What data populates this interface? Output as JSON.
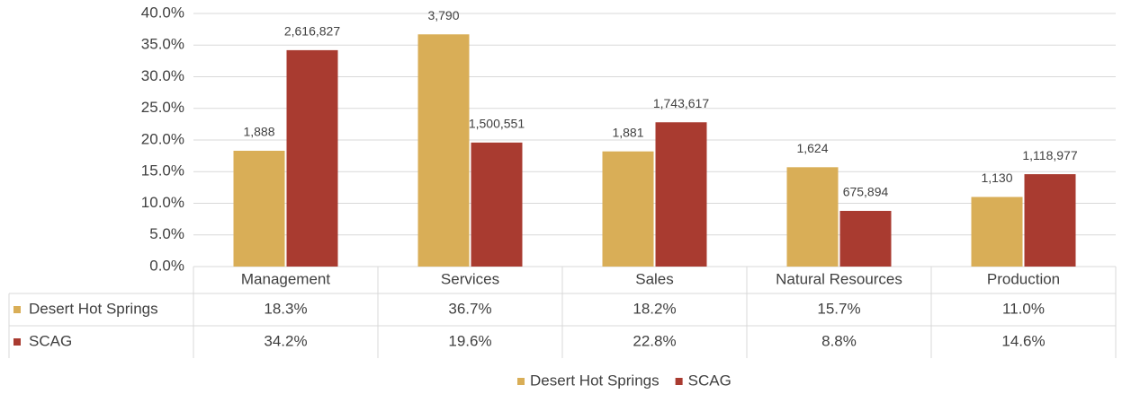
{
  "chart_data": {
    "type": "bar",
    "categories": [
      "Management",
      "Services",
      "Sales",
      "Natural Resources",
      "Production"
    ],
    "series": [
      {
        "name": "Desert Hot Springs",
        "color": "#d9ae57",
        "values": [
          18.3,
          36.7,
          18.2,
          15.7,
          11.0
        ],
        "value_labels": [
          "18.3%",
          "36.7%",
          "18.2%",
          "15.7%",
          "11.0%"
        ],
        "count_labels": [
          "1,888",
          "3,790",
          "1,881",
          "1,624",
          "1,130"
        ]
      },
      {
        "name": "SCAG",
        "color": "#a93b30",
        "values": [
          34.2,
          19.6,
          22.8,
          8.8,
          14.6
        ],
        "value_labels": [
          "34.2%",
          "19.6%",
          "22.8%",
          "8.8%",
          "14.6%"
        ],
        "count_labels": [
          "2,616,827",
          "1,500,551",
          "1,743,617",
          "675,894",
          "1,118,977"
        ]
      }
    ],
    "ylim": [
      0,
      40
    ],
    "yticks": [
      {
        "value": 0,
        "label": "0.0%"
      },
      {
        "value": 5,
        "label": "5.0%"
      },
      {
        "value": 10,
        "label": "10.0%"
      },
      {
        "value": 15,
        "label": "15.0%"
      },
      {
        "value": 20,
        "label": "20.0%"
      },
      {
        "value": 25,
        "label": "25.0%"
      },
      {
        "value": 30,
        "label": "30.0%"
      },
      {
        "value": 35,
        "label": "35.0%"
      },
      {
        "value": 40,
        "label": "40.0%"
      }
    ],
    "grid": true,
    "legend": "bottom",
    "data_table": true
  }
}
